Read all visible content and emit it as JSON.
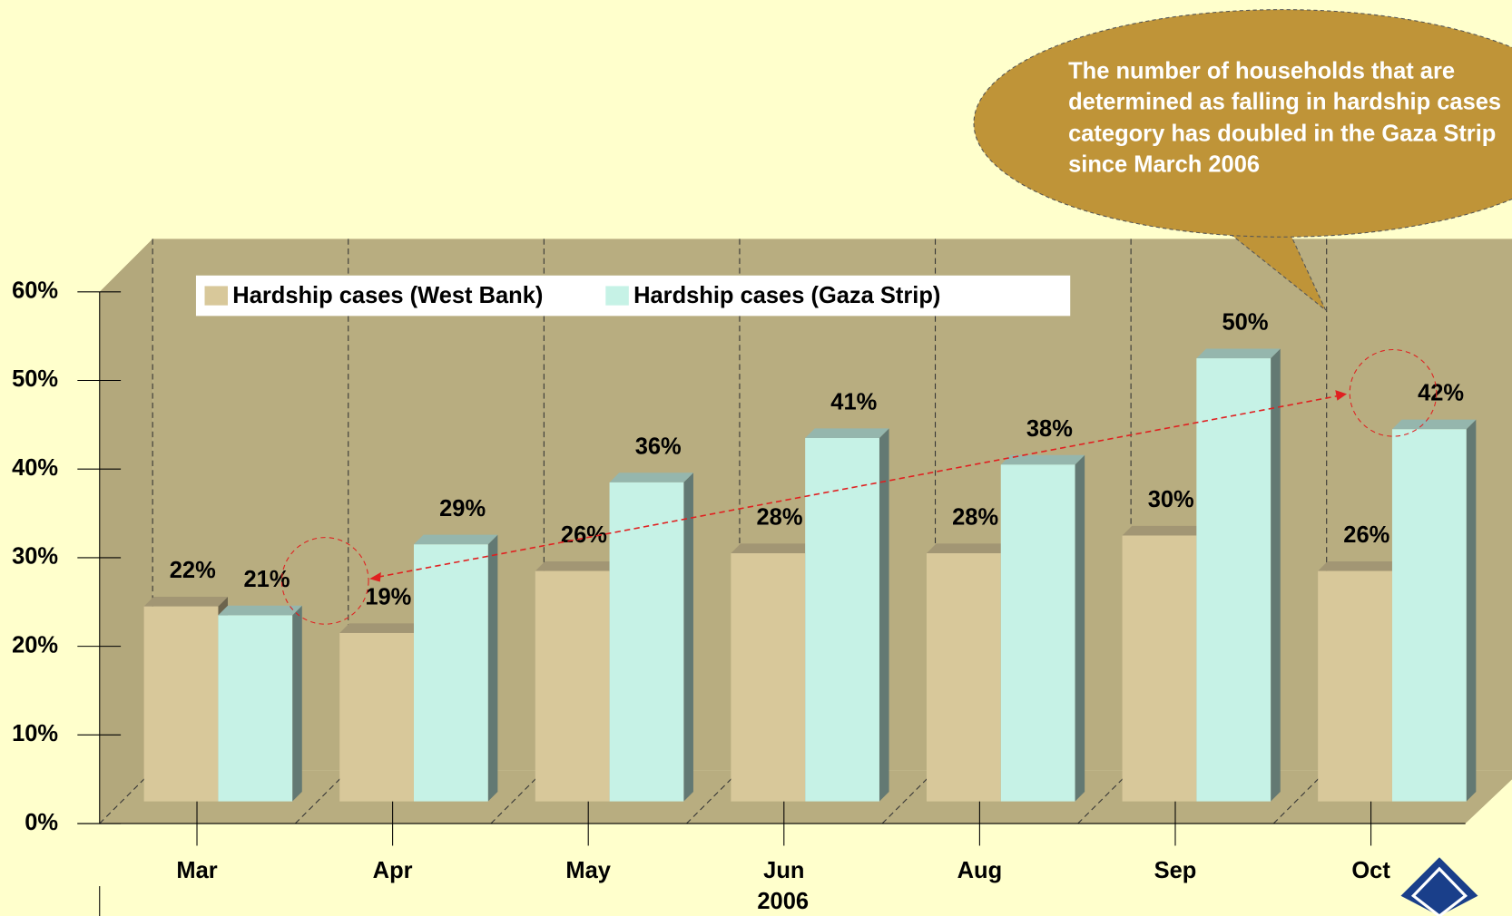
{
  "chart_data": {
    "type": "bar",
    "categories": [
      "Mar",
      "Apr",
      "May",
      "Jun",
      "Aug",
      "Sep",
      "Oct"
    ],
    "x_label": "2006",
    "series": [
      {
        "name": "Hardship cases (West Bank)",
        "color": "#d8c89a",
        "values": [
          22,
          19,
          26,
          28,
          28,
          30,
          26
        ],
        "value_labels": [
          "22%",
          "19%",
          "26%",
          "28%",
          "28%",
          "30%",
          "26%"
        ]
      },
      {
        "name": "Hardship cases (Gaza Strip)",
        "color": "#c6f2e6",
        "values": [
          21,
          29,
          36,
          41,
          38,
          50,
          42
        ],
        "value_labels": [
          "21%",
          "29%",
          "36%",
          "41%",
          "38%",
          "50%",
          "42%"
        ]
      }
    ],
    "ylim": [
      0,
      60
    ],
    "yticks": [
      {
        "value": 0,
        "label": "0%"
      },
      {
        "value": 10,
        "label": "10%"
      },
      {
        "value": 20,
        "label": "20%"
      },
      {
        "value": 30,
        "label": "30%"
      },
      {
        "value": 40,
        "label": "40%"
      },
      {
        "value": 50,
        "label": "50%"
      },
      {
        "value": 60,
        "label": "60%"
      }
    ],
    "legend": "top-left",
    "annotation": [
      "The number of households that are",
      "determined as falling in hardship cases",
      "category has doubled in the Gaza Strip",
      "since March 2006"
    ]
  }
}
